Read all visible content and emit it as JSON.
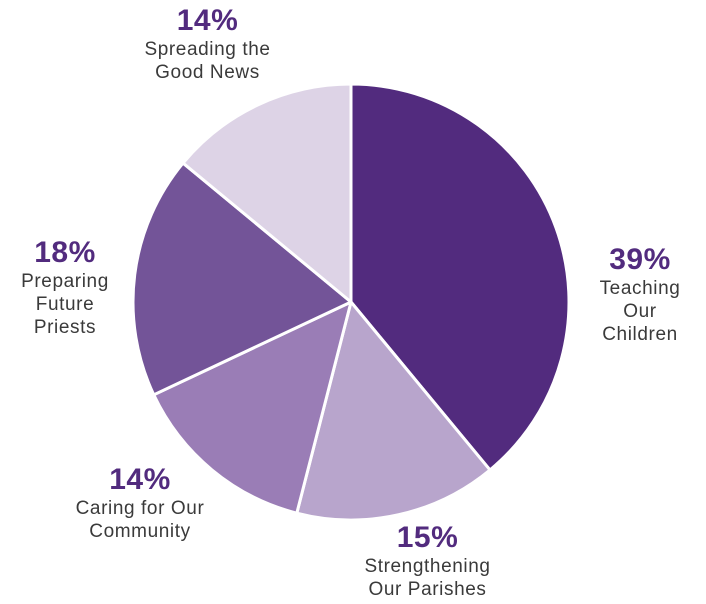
{
  "chart_data": {
    "type": "pie",
    "start_angle_deg": 0,
    "direction": "clockwise",
    "slices": [
      {
        "label_lines": [
          "Teaching",
          "Our",
          "Children"
        ],
        "value": 39,
        "value_label": "39%",
        "color": "#522b7e"
      },
      {
        "label_lines": [
          "Strengthening",
          "Our Parishes"
        ],
        "value": 15,
        "value_label": "15%",
        "color": "#b8a5cc"
      },
      {
        "label_lines": [
          "Caring for Our",
          "Community"
        ],
        "value": 14,
        "value_label": "14%",
        "color": "#9a7db6"
      },
      {
        "label_lines": [
          "Preparing",
          "Future",
          "Priests"
        ],
        "value": 18,
        "value_label": "18%",
        "color": "#735498"
      },
      {
        "label_lines": [
          "Spreading the",
          "Good News"
        ],
        "value": 14,
        "value_label": "14%",
        "color": "#ddd3e6"
      }
    ],
    "percent_color": "#522b7e",
    "text_color": "#3a3a3a"
  }
}
